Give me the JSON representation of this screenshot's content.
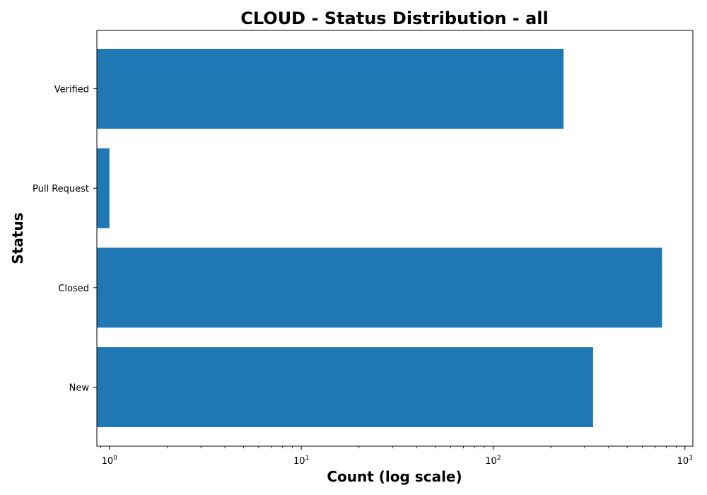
{
  "chart_data": {
    "type": "bar",
    "orientation": "horizontal",
    "title": "CLOUD - Status Distribution - all",
    "xlabel": "Count (log scale)",
    "ylabel": "Status",
    "x_scale": "log",
    "xlim": [
      0.86,
      1100
    ],
    "categories": [
      "Verified",
      "Pull Request",
      "Closed",
      "New"
    ],
    "values": [
      233,
      1,
      760,
      332
    ],
    "x_ticks": [
      {
        "base": "10",
        "exp": "0",
        "value": 1
      },
      {
        "base": "10",
        "exp": "1",
        "value": 10
      },
      {
        "base": "10",
        "exp": "2",
        "value": 100
      },
      {
        "base": "10",
        "exp": "3",
        "value": 1000
      }
    ],
    "bar_color": "#1f77b4",
    "grid": false,
    "legend": "none"
  }
}
